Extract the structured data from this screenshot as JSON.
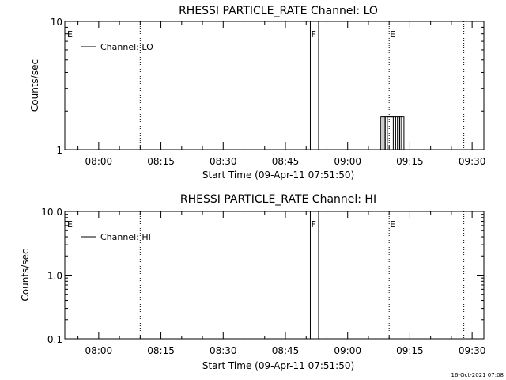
{
  "footer": {
    "timestamp": "16-Oct-2021 07:08"
  },
  "chart_data": [
    {
      "type": "line",
      "title": "RHESSI PARTICLE_RATE Channel: LO",
      "xlabel": "Start Time (09-Apr-11 07:51:50)",
      "ylabel": "Counts/sec",
      "y_scale": "log",
      "ylim": [
        1,
        10
      ],
      "y_ticks": [
        {
          "value": 1,
          "label": "1"
        },
        {
          "value": 10,
          "label": "10"
        }
      ],
      "x_ticks": [
        "08:00",
        "08:15",
        "08:30",
        "08:45",
        "09:00",
        "09:15",
        "09:30"
      ],
      "legend": {
        "placement": "top-left",
        "entries": [
          "Channel: LO"
        ]
      },
      "flags": [
        {
          "label": "E",
          "time": "07:51:50",
          "style": "dotted"
        },
        {
          "time": "08:10",
          "style": "dotted"
        },
        {
          "label": "F",
          "time": "08:51",
          "style": "solid"
        },
        {
          "time": "08:53",
          "style": "solid"
        },
        {
          "label": "E",
          "time": "09:10",
          "style": "dotted"
        },
        {
          "time": "09:28",
          "style": "dotted"
        }
      ],
      "series": [
        {
          "name": "Channel: LO",
          "points": [
            [
              "09:07:30",
              1
            ],
            [
              "09:08:00",
              1.8
            ],
            [
              "09:08:30",
              1
            ],
            [
              "09:09:00",
              1.8
            ],
            [
              "09:09:30",
              1.8
            ],
            [
              "09:10:00",
              1.8
            ],
            [
              "09:10:30",
              1.8
            ],
            [
              "09:11:00",
              1
            ],
            [
              "09:11:30",
              1.8
            ],
            [
              "09:12:00",
              1
            ],
            [
              "09:12:30",
              1.8
            ],
            [
              "09:13:00",
              1
            ]
          ]
        }
      ]
    },
    {
      "type": "line",
      "title": "RHESSI PARTICLE_RATE Channel: HI",
      "xlabel": "Start Time (09-Apr-11 07:51:50)",
      "ylabel": "Counts/sec",
      "y_scale": "log",
      "ylim": [
        0.1,
        10
      ],
      "y_ticks": [
        {
          "value": 0.1,
          "label": "0.1"
        },
        {
          "value": 1,
          "label": "1.0"
        },
        {
          "value": 10,
          "label": "10.0"
        }
      ],
      "x_ticks": [
        "08:00",
        "08:15",
        "08:30",
        "08:45",
        "09:00",
        "09:15",
        "09:30"
      ],
      "legend": {
        "placement": "top-left",
        "entries": [
          "Channel: HI"
        ]
      },
      "flags": [
        {
          "label": "E",
          "time": "07:51:50",
          "style": "dotted"
        },
        {
          "time": "08:10",
          "style": "dotted"
        },
        {
          "label": "F",
          "time": "08:51",
          "style": "solid"
        },
        {
          "time": "08:53",
          "style": "solid"
        },
        {
          "label": "E",
          "time": "09:10",
          "style": "dotted"
        },
        {
          "time": "09:28",
          "style": "dotted"
        }
      ],
      "series": [
        {
          "name": "Channel: HI",
          "points": []
        }
      ]
    }
  ]
}
